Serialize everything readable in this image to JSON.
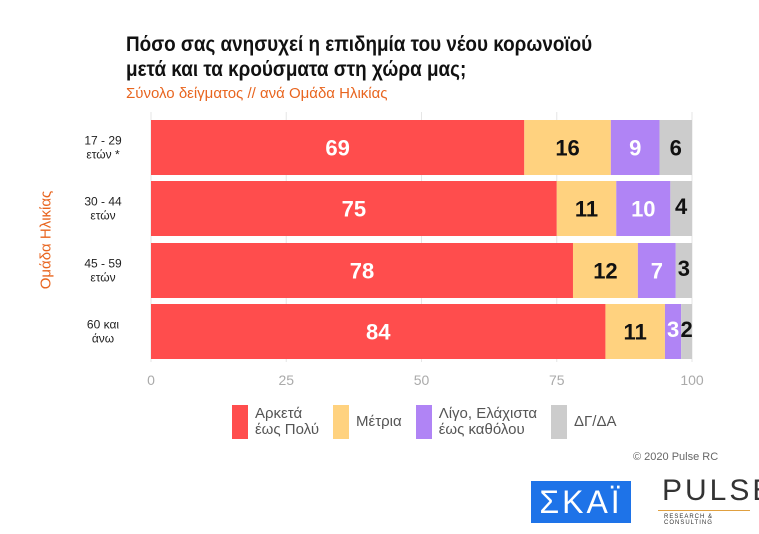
{
  "chart_data": {
    "type": "bar",
    "orientation": "horizontal",
    "stacked": true,
    "title": "Πόσο σας ανησυχεί η επιδημία του νέου κορωνοϊού μετά και τα κρούσματα στη χώρα μας;",
    "subtitle": "Σύνολο δείγματος // ανά Ομάδα Ηλικίας",
    "ylabel": "Ομάδα Ηλικίας",
    "categories": [
      [
        "17 - 29",
        "ετών *"
      ],
      [
        "30 - 44",
        "ετών"
      ],
      [
        "45 - 59",
        "ετών"
      ],
      [
        "60 και",
        "άνω"
      ]
    ],
    "series": [
      {
        "name": "Αρκετά έως Πολύ",
        "legend": [
          "Αρκετά",
          "έως Πολύ"
        ],
        "color": "#ff4d4d",
        "label_color": "#ffffff",
        "values": [
          69,
          75,
          78,
          84
        ]
      },
      {
        "name": "Μέτρια",
        "legend": [
          "Μέτρια"
        ],
        "color": "#ffd27f",
        "label_color": "#111111",
        "values": [
          16,
          11,
          12,
          11
        ]
      },
      {
        "name": "Λίγο, Ελάχιστα έως καθόλου",
        "legend": [
          "Λίγο, Ελάχιστα",
          "έως καθόλου"
        ],
        "color": "#b084f5",
        "label_color": "#ffffff",
        "values": [
          9,
          10,
          7,
          3
        ]
      },
      {
        "name": "ΔΓ/ΔΑ",
        "legend": [
          "ΔΓ/ΔΑ"
        ],
        "color": "#cccccc",
        "label_color": "#111111",
        "values": [
          6,
          4,
          3,
          2
        ]
      }
    ],
    "xlim": [
      0,
      100
    ],
    "xticks": [
      0,
      25,
      50,
      75,
      100
    ],
    "grid": true,
    "legend_position": "bottom"
  },
  "footer": {
    "copyright": "© 2020 Pulse RC",
    "logo_skai": "ΣΚΑΪ",
    "logo_pulse": "PULSE",
    "logo_pulse_sub": "RESEARCH & CONSULTING"
  }
}
